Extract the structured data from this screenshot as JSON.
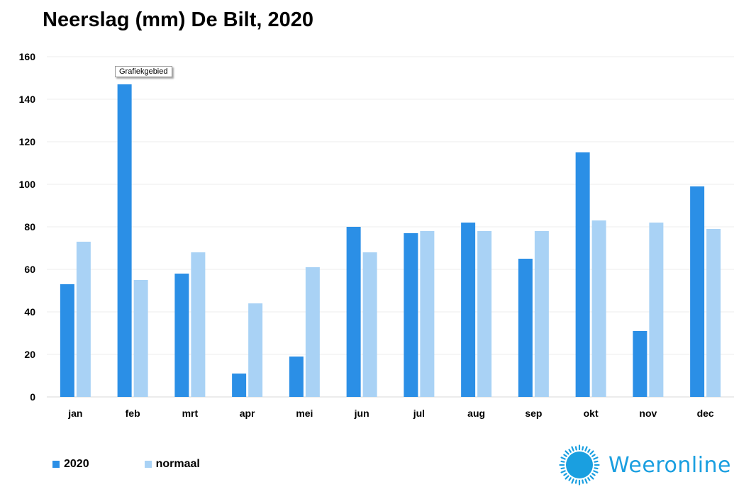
{
  "chart_data": {
    "type": "bar",
    "title": "Neerslag (mm) De Bilt, 2020",
    "xlabel": "",
    "ylabel": "",
    "categories": [
      "jan",
      "feb",
      "mrt",
      "apr",
      "mei",
      "jun",
      "jul",
      "aug",
      "sep",
      "okt",
      "nov",
      "dec"
    ],
    "series": [
      {
        "name": "2020",
        "color": "#2b8fe6",
        "values": [
          53,
          147,
          58,
          11,
          19,
          80,
          77,
          82,
          65,
          115,
          31,
          99
        ]
      },
      {
        "name": "normaal",
        "color": "#a9d2f5",
        "values": [
          73,
          55,
          68,
          44,
          61,
          68,
          78,
          78,
          78,
          83,
          82,
          79
        ]
      }
    ],
    "ylim": [
      0,
      160
    ],
    "yticks": [
      0,
      20,
      40,
      60,
      80,
      100,
      120,
      140,
      160
    ],
    "grid": true,
    "legend_position": "bottom-left"
  },
  "tooltip": "Grafiekgebied",
  "logo": {
    "text": "Weeronline",
    "color": "#1a9fe0",
    "icon": "sun-icon"
  }
}
